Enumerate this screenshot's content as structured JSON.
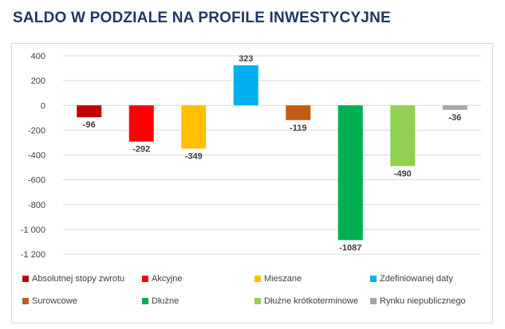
{
  "page": {
    "title": "SALDO W PODZIALE NA PROFILE INWESTYCYJNE"
  },
  "chart_data": {
    "type": "bar",
    "title": "",
    "xlabel": "",
    "ylabel": "",
    "ylim": [
      -1200,
      400
    ],
    "yticks": [
      400,
      200,
      0,
      -200,
      -400,
      -600,
      -800,
      -1000,
      -1200
    ],
    "ytick_labels": [
      "400",
      "200",
      "0",
      "-200",
      "-400",
      "-600",
      "-800",
      "-1 000",
      "-1 200"
    ],
    "grid": true,
    "legend_position": "bottom",
    "categories": [
      "Absolutnej stopy zwrotu",
      "Akcyjne",
      "Mieszane",
      "Zdefiniowanej daty",
      "Surowcowe",
      "Dłużne",
      "Dłużne krótkoterminowe",
      "Rynku niepublicznego"
    ],
    "values": [
      -96,
      -292,
      -349,
      323,
      -119,
      -1087,
      -490,
      -36
    ],
    "colors": [
      "#c00000",
      "#ff0000",
      "#ffc000",
      "#00b0f0",
      "#c55a11",
      "#00b050",
      "#92d050",
      "#a6a6a6"
    ]
  }
}
